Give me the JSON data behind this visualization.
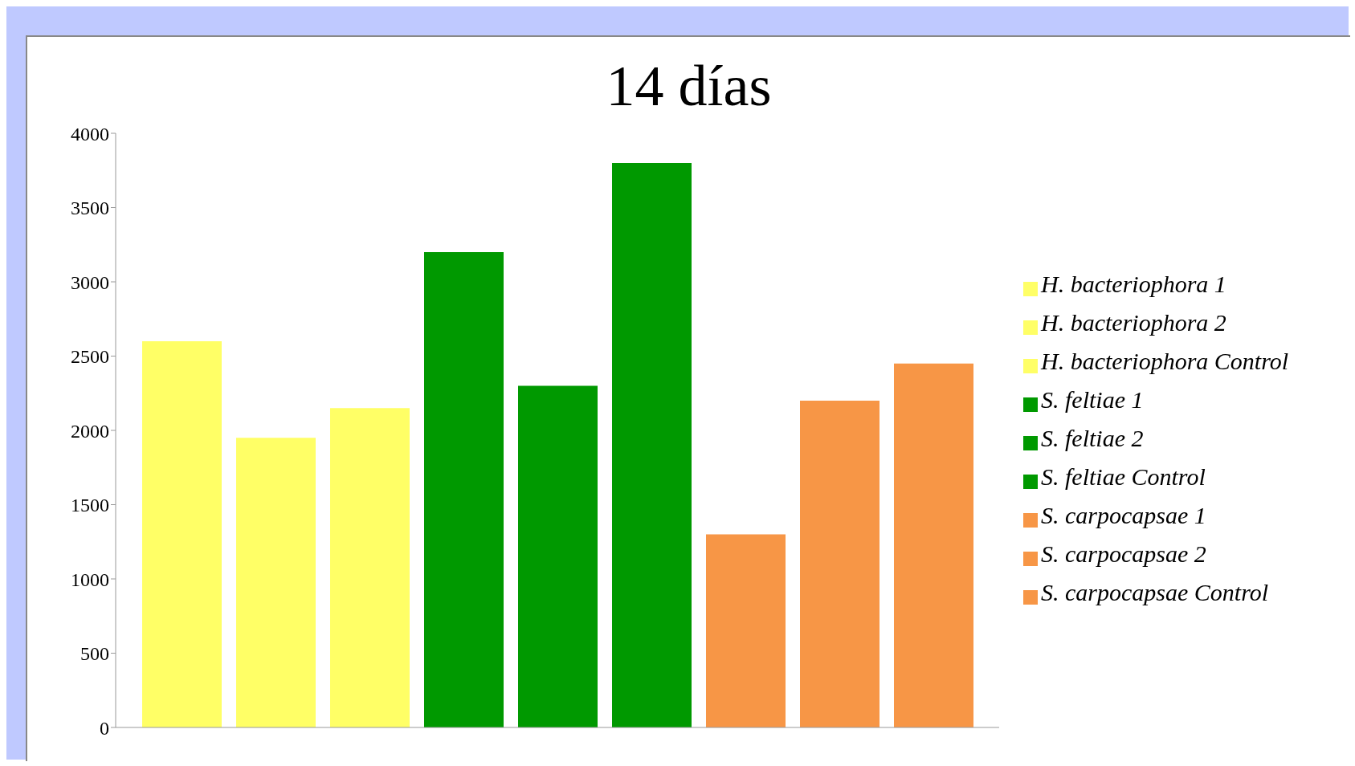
{
  "chart_data": {
    "type": "bar",
    "title": "14 días",
    "categories": [
      null
    ],
    "series": [
      {
        "name": "H. bacteriophora  1",
        "color": "#ffff66",
        "values": [
          2600
        ]
      },
      {
        "name": "H. bacteriophora  2",
        "color": "#ffff66",
        "values": [
          1950
        ]
      },
      {
        "name": "H. bacteriophora  Control",
        "color": "#ffff66",
        "values": [
          2150
        ]
      },
      {
        "name": "S. feltiae  1",
        "color": "#009900",
        "values": [
          3200
        ]
      },
      {
        "name": "S. feltiae  2",
        "color": "#009900",
        "values": [
          2300
        ]
      },
      {
        "name": "S. feltiae  Control",
        "color": "#009900",
        "values": [
          3800
        ]
      },
      {
        "name": "S. carpocapsae  1",
        "color": "#f79646",
        "values": [
          1300
        ]
      },
      {
        "name": "S. carpocapsae  2",
        "color": "#f79646",
        "values": [
          2200
        ]
      },
      {
        "name": "S. carpocapsae  Control",
        "color": "#f79646",
        "values": [
          2450
        ]
      }
    ],
    "ylim": [
      0,
      4000
    ],
    "yticks": [
      0,
      500,
      1000,
      1500,
      2000,
      2500,
      3000,
      3500,
      4000
    ],
    "legend": "right"
  }
}
